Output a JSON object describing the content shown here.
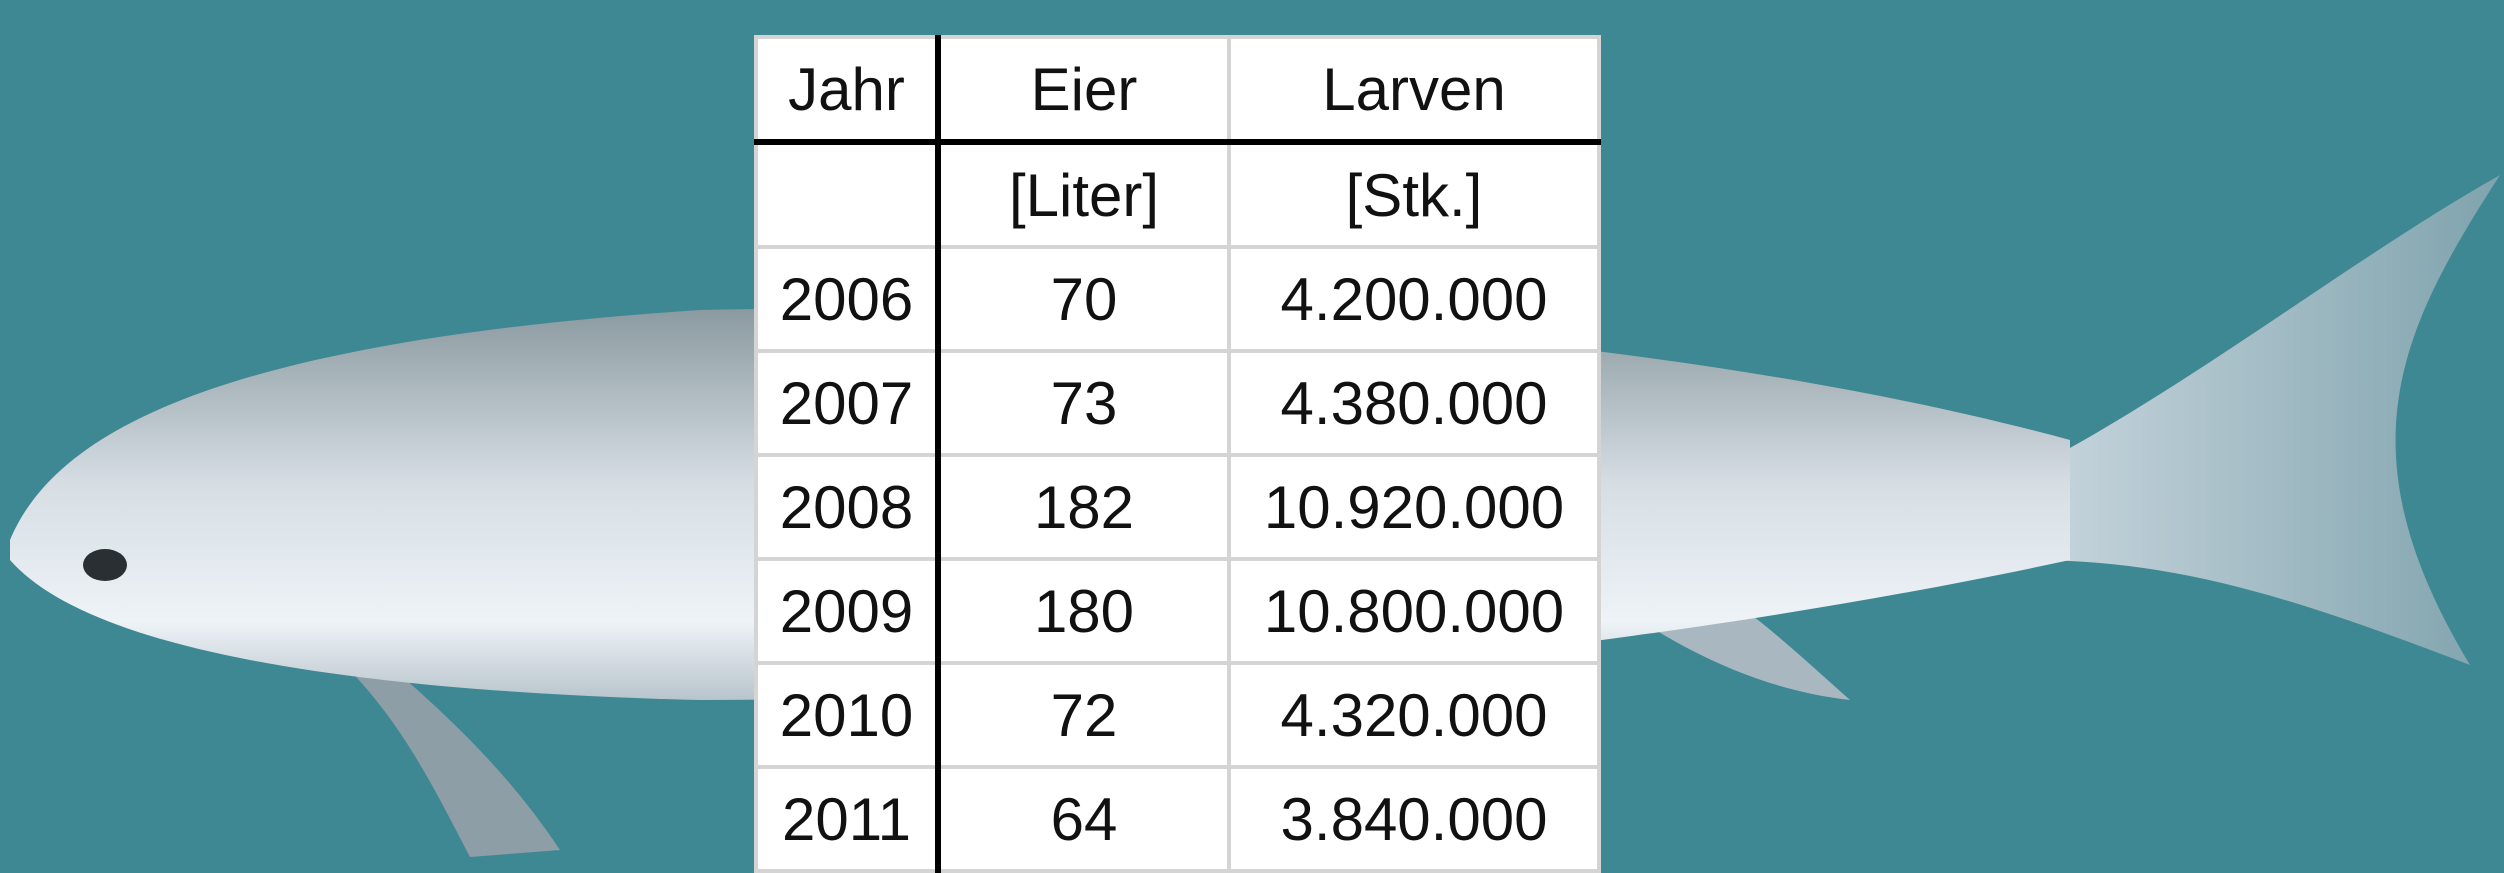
{
  "table": {
    "header": [
      "Jahr",
      "Eier",
      "Larven"
    ],
    "units": [
      "[Liter]",
      "[Stk.]"
    ],
    "rows": [
      [
        "2006",
        "70",
        "4.200.000"
      ],
      [
        "2007",
        "73",
        "4.380.000"
      ],
      [
        "2008",
        "182",
        "10.920.000"
      ],
      [
        "2009",
        "180",
        "10.800.000"
      ],
      [
        "2010",
        "72",
        "4.320.000"
      ],
      [
        "2011",
        "64",
        "3.840.000"
      ]
    ]
  }
}
